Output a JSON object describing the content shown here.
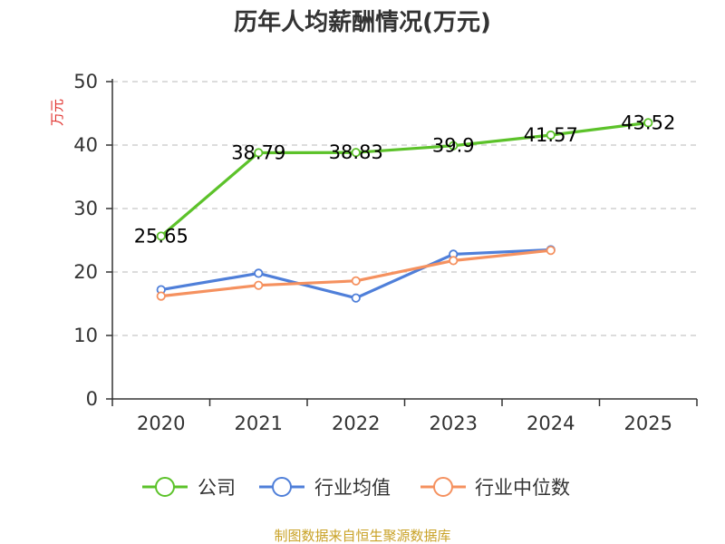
{
  "chart_data": {
    "type": "line",
    "title": "历年人均薪酬情况(万元)",
    "ylabel": "万元",
    "categories": [
      "2020",
      "2021",
      "2022",
      "2023",
      "2024",
      "2025"
    ],
    "ylim": [
      0,
      50
    ],
    "yticks": [
      0,
      10,
      20,
      30,
      40,
      50
    ],
    "grid": true,
    "legend_position": "bottom",
    "series": [
      {
        "name": "公司",
        "color": "#5cc22a",
        "values": [
          25.65,
          38.79,
          38.83,
          39.9,
          41.57,
          43.52
        ],
        "labels": [
          "25.65",
          "38.79",
          "38.83",
          "39.9",
          "41.57",
          "43.52"
        ]
      },
      {
        "name": "行业均值",
        "color": "#4f7fd9",
        "values": [
          17.2,
          19.8,
          15.9,
          22.8,
          23.5,
          null
        ]
      },
      {
        "name": "行业中位数",
        "color": "#f5915f",
        "values": [
          16.2,
          17.9,
          18.6,
          21.8,
          23.4,
          null
        ]
      }
    ]
  },
  "ylabel_color": "#e0312d",
  "source": {
    "text": "制图数据来自恒生聚源数据库",
    "color": "#c9a227"
  }
}
